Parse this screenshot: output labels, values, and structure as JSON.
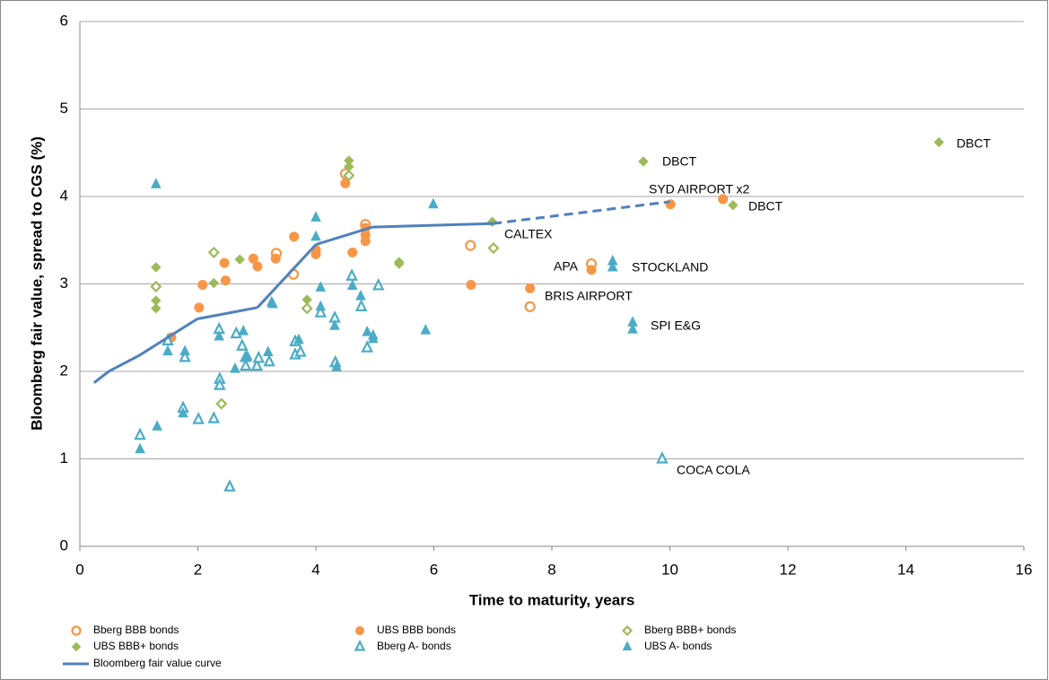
{
  "chart_data": {
    "type": "scatter",
    "xlabel": "Time to maturity, years",
    "ylabel": "Bloomberg fair value, spread to CGS (%)",
    "xlim": [
      0,
      16
    ],
    "xticks": [
      0,
      2,
      4,
      6,
      8,
      10,
      12,
      14,
      16
    ],
    "ylim": [
      0,
      6
    ],
    "yticks": [
      0,
      1,
      2,
      3,
      4,
      5,
      6
    ],
    "grid": true,
    "series": [
      {
        "name": "Bberg BBB bonds",
        "color": "#f79646",
        "marker": "circle",
        "filled": false,
        "x": [
          4.5,
          3.33,
          3.62,
          4.84,
          6.62,
          8.67,
          7.63
        ],
        "values": [
          4.26,
          3.35,
          3.11,
          3.68,
          3.44,
          3.23,
          2.74
        ]
      },
      {
        "name": "UBS BBB bonds",
        "color": "#f79646",
        "marker": "circle",
        "filled": true,
        "x": [
          1.55,
          2.02,
          2.08,
          2.45,
          2.47,
          2.94,
          3.01,
          3.32,
          3.63,
          4.0,
          4.0,
          4.5,
          4.62,
          4.84,
          4.84,
          4.84,
          6.63,
          7.63,
          8.67,
          10.01,
          10.9
        ],
        "values": [
          2.39,
          2.73,
          2.99,
          3.24,
          3.04,
          3.29,
          3.2,
          3.29,
          3.54,
          3.39,
          3.34,
          4.15,
          3.36,
          3.64,
          3.56,
          3.49,
          2.99,
          2.95,
          3.16,
          3.91,
          3.97
        ]
      },
      {
        "name": "Bberg BBB+ bonds",
        "color": "#9bbb59",
        "marker": "diamond",
        "filled": false,
        "x": [
          1.29,
          2.27,
          2.4,
          3.85,
          4.56,
          7.01
        ],
        "values": [
          2.97,
          3.36,
          1.63,
          2.72,
          4.24,
          3.41
        ]
      },
      {
        "name": "UBS BBB+ bonds",
        "color": "#9bbb59",
        "marker": "diamond",
        "filled": true,
        "x": [
          1.29,
          1.29,
          1.29,
          2.27,
          2.71,
          3.85,
          4.56,
          4.56,
          5.41,
          5.41,
          6.99,
          9.55,
          11.07,
          14.56
        ],
        "values": [
          3.19,
          2.81,
          2.72,
          3.01,
          3.28,
          2.82,
          4.41,
          4.34,
          3.25,
          3.23,
          3.71,
          4.4,
          3.9,
          4.62
        ]
      },
      {
        "name": "Bberg A- bonds",
        "color": "#4bacc6",
        "marker": "triangle",
        "filled": false,
        "x": [
          1.02,
          1.49,
          1.75,
          1.78,
          2.01,
          2.27,
          2.36,
          2.37,
          2.37,
          2.54,
          2.65,
          2.75,
          2.81,
          2.81,
          3.0,
          3.03,
          3.21,
          3.65,
          3.65,
          3.74,
          4.08,
          4.32,
          4.33,
          4.61,
          4.77,
          4.87,
          5.06,
          9.87
        ],
        "values": [
          1.27,
          2.35,
          1.58,
          2.16,
          1.45,
          1.46,
          2.48,
          1.91,
          1.84,
          0.68,
          2.43,
          2.29,
          2.16,
          2.06,
          2.06,
          2.15,
          2.11,
          2.19,
          2.34,
          2.22,
          2.67,
          2.61,
          2.1,
          3.09,
          2.74,
          2.27,
          2.98,
          1.0
        ]
      },
      {
        "name": "UBS A- bonds",
        "color": "#4bacc6",
        "marker": "triangle",
        "filled": true,
        "x": [
          1.02,
          1.29,
          1.31,
          1.49,
          1.75,
          1.78,
          2.36,
          2.63,
          2.77,
          2.84,
          3.25,
          3.27,
          3.19,
          3.71,
          4.0,
          4.0,
          4.08,
          4.08,
          4.32,
          4.35,
          4.62,
          4.76,
          4.87,
          4.97,
          4.97,
          5.86,
          5.99,
          9.03,
          9.03,
          9.37,
          9.37
        ],
        "values": [
          1.11,
          4.14,
          1.37,
          2.23,
          1.52,
          2.23,
          2.4,
          2.03,
          2.46,
          2.17,
          2.79,
          2.77,
          2.22,
          2.36,
          3.76,
          3.54,
          2.96,
          2.74,
          2.52,
          2.05,
          2.98,
          2.86,
          2.45,
          2.41,
          2.37,
          2.47,
          3.91,
          3.26,
          3.19,
          2.56,
          2.48
        ]
      },
      {
        "name": "Bloomberg fair value curve",
        "color": "#4f81bd",
        "marker": "line",
        "filled": true,
        "x": [
          0.24,
          0.49,
          1.0,
          1.99,
          3.01,
          4.0,
          4.96,
          7.0,
          10.0
        ],
        "values": [
          1.87,
          2.0,
          2.18,
          2.6,
          2.73,
          3.45,
          3.65,
          3.69,
          3.94
        ],
        "segment_styles": [
          "solid",
          "solid",
          "solid",
          "solid",
          "solid",
          "solid",
          "solid",
          "dashed"
        ]
      }
    ],
    "annotations": [
      "DBCT",
      "SYD AIRPORT x2",
      "DBCT",
      "DBCT",
      "CALTEX",
      "APA",
      "STOCKLAND",
      "BRIS AIRPORT",
      "SPI E&G",
      "COCA COLA"
    ]
  }
}
